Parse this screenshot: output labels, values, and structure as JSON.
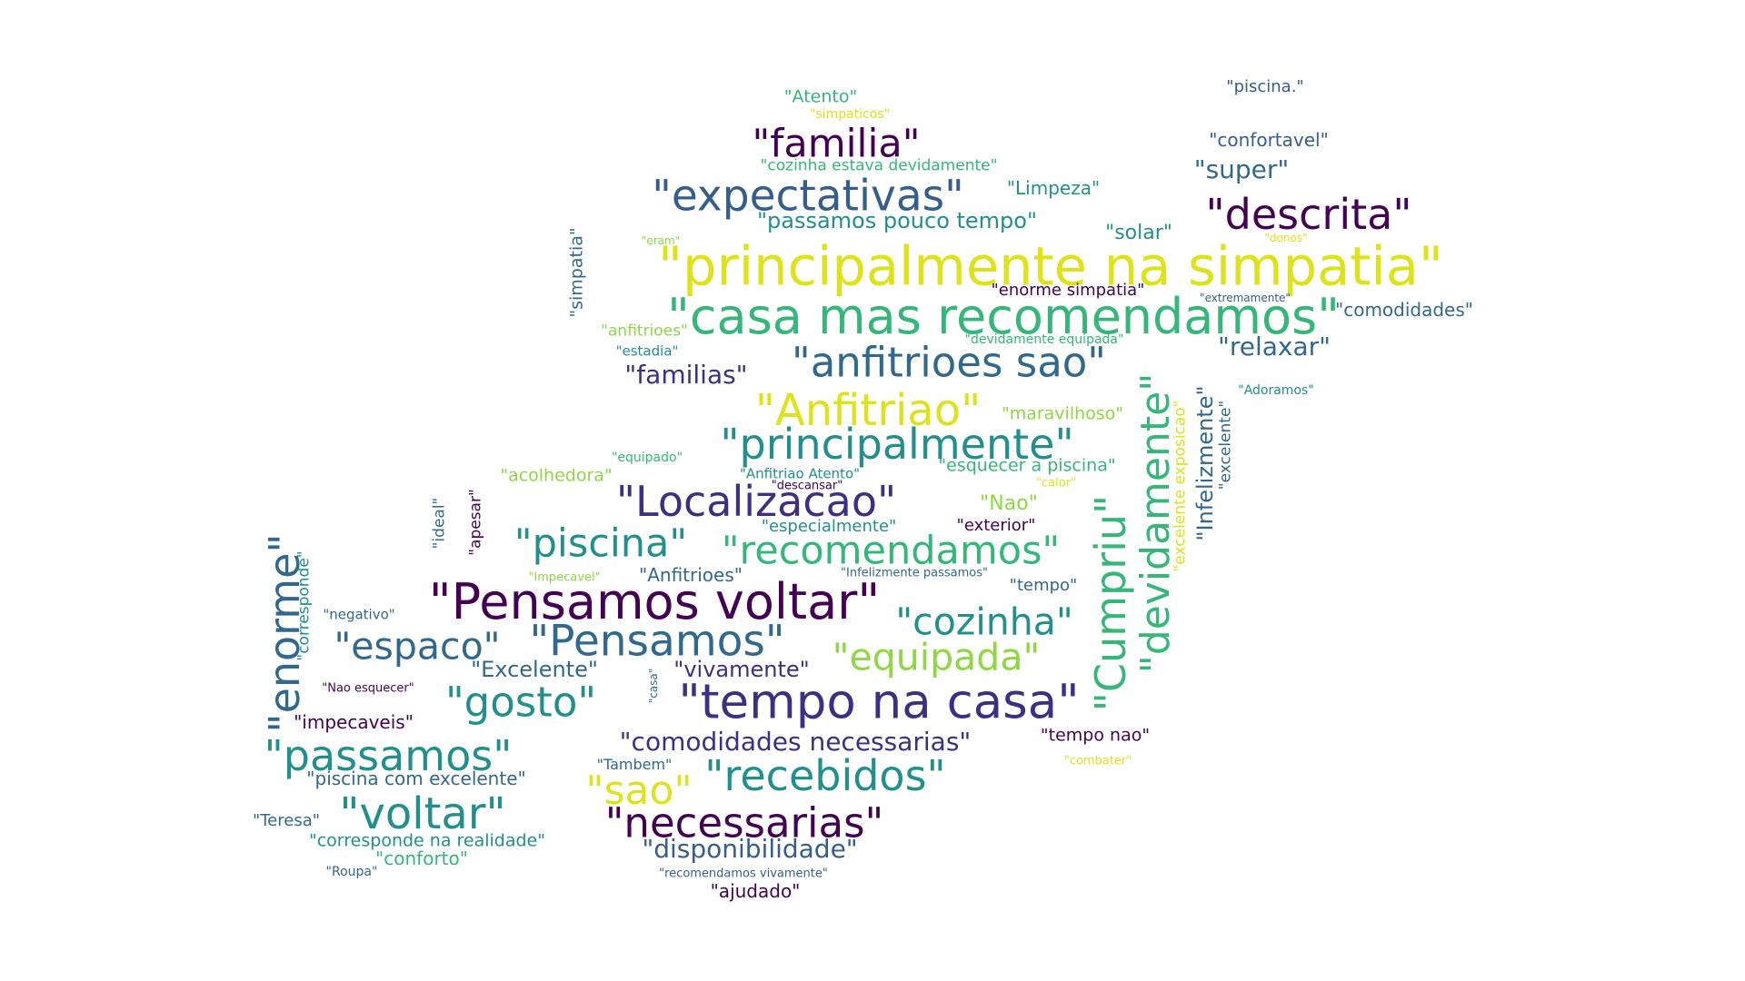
{
  "palette": {
    "dark_purple": "#440154",
    "indigo": "#3e2f84",
    "blue": "#355e8d",
    "steel": "#31688e",
    "teal": "#21908d",
    "green": "#35b779",
    "lime": "#8fd744",
    "yellow": "#dde318"
  },
  "words": [
    {
      "id": "w1",
      "text": "\"principalmente na simpatia\""
    },
    {
      "id": "w2",
      "text": "\"casa mas recomendamos\""
    },
    {
      "id": "w3",
      "text": "\"Pensamos voltar\""
    },
    {
      "id": "w4",
      "text": "\"tempo na casa\""
    },
    {
      "id": "w5",
      "text": "\"Anfitriao\""
    },
    {
      "id": "w6",
      "text": "\"principalmente\""
    },
    {
      "id": "w7",
      "text": "\"Localizacao\""
    },
    {
      "id": "w8",
      "text": "\"expectativas\""
    },
    {
      "id": "w9",
      "text": "\"anfitrioes sao\""
    },
    {
      "id": "w10",
      "text": "\"descrita\""
    },
    {
      "id": "w11",
      "text": "\"Pensamos\""
    },
    {
      "id": "w12",
      "text": "\"Cumpriu\""
    },
    {
      "id": "w13",
      "text": "\"devidamente\""
    },
    {
      "id": "w14",
      "text": "\"enorme\""
    },
    {
      "id": "w15",
      "text": "\"voltar\""
    },
    {
      "id": "w16",
      "text": "\"recebidos\""
    },
    {
      "id": "w17",
      "text": "\"necessarias\""
    },
    {
      "id": "w18",
      "text": "\"passamos\""
    },
    {
      "id": "w19",
      "text": "\"familia\""
    },
    {
      "id": "w20",
      "text": "\"recomendamos\""
    },
    {
      "id": "w21",
      "text": "\"piscina\""
    },
    {
      "id": "w22",
      "text": "\"gosto\""
    },
    {
      "id": "w23",
      "text": "\"espaco\""
    },
    {
      "id": "w24",
      "text": "\"cozinha\""
    },
    {
      "id": "w25",
      "text": "\"equipada\""
    },
    {
      "id": "w26",
      "text": "\"sao\""
    },
    {
      "id": "w27",
      "text": "\"comodidades necessarias\""
    },
    {
      "id": "w28",
      "text": "\"disponibilidade\""
    },
    {
      "id": "w29",
      "text": "\"familias\""
    },
    {
      "id": "w30",
      "text": "\"relaxar\""
    },
    {
      "id": "w31",
      "text": "\"super\""
    },
    {
      "id": "w32",
      "text": "\"passamos pouco tempo\""
    },
    {
      "id": "w33",
      "text": "\"vivamente\""
    },
    {
      "id": "w34",
      "text": "\"Excelente\""
    },
    {
      "id": "w35",
      "text": "\"Infelizmente\""
    },
    {
      "id": "w36",
      "text": "\"confortavel\""
    },
    {
      "id": "w37",
      "text": "\"comodidades\""
    },
    {
      "id": "w38",
      "text": "\"solar\""
    },
    {
      "id": "w39",
      "text": "\"Limpeza\""
    },
    {
      "id": "w40",
      "text": "\"Atento\""
    },
    {
      "id": "w41",
      "text": "\"simpatia\""
    },
    {
      "id": "w42",
      "text": "\"acolhedora\""
    },
    {
      "id": "w43",
      "text": "\"piscina com excelente\""
    },
    {
      "id": "w44",
      "text": "\"corresponde na realidade\""
    },
    {
      "id": "w45",
      "text": "\"impecaveis\""
    },
    {
      "id": "w46",
      "text": "\"conforto\""
    },
    {
      "id": "w47",
      "text": "\"Anfitrioes\""
    },
    {
      "id": "w48",
      "text": "\"tempo nao\""
    },
    {
      "id": "w49",
      "text": "\"ajudado\""
    },
    {
      "id": "w50",
      "text": "\"esquecer a piscina\""
    },
    {
      "id": "w51",
      "text": "\"maravilhoso\""
    },
    {
      "id": "w52",
      "text": "\"Nao\""
    },
    {
      "id": "w53",
      "text": "\"exterior\""
    },
    {
      "id": "w54",
      "text": "\"especialmente\""
    },
    {
      "id": "w55",
      "text": "\"tempo\""
    },
    {
      "id": "w56",
      "text": "\"Teresa\""
    },
    {
      "id": "w57",
      "text": "\"enorme simpatia\""
    },
    {
      "id": "w58",
      "text": "\"piscina.\""
    },
    {
      "id": "w59",
      "text": "\"excelente exposicao\""
    },
    {
      "id": "w60",
      "text": "\"excelente\""
    },
    {
      "id": "w61",
      "text": "\"cozinha estava devidamente\""
    },
    {
      "id": "w62",
      "text": "\"anfitrioes\""
    },
    {
      "id": "w63",
      "text": "\"apesar\""
    },
    {
      "id": "w64",
      "text": "\"ideal\""
    },
    {
      "id": "w65",
      "text": "\"corresponde\""
    },
    {
      "id": "w66",
      "text": "\"Tambem\""
    },
    {
      "id": "w67",
      "text": "\"negativo\""
    },
    {
      "id": "w68",
      "text": "\"Anfitriao Atento\""
    },
    {
      "id": "w69",
      "text": "\"Impecavel\""
    },
    {
      "id": "w70",
      "text": "\"estadia\""
    },
    {
      "id": "w71",
      "text": "\"Adoramos\""
    },
    {
      "id": "w72",
      "text": "\"devidamente equipada\""
    },
    {
      "id": "w73",
      "text": "\"equipado\""
    },
    {
      "id": "w74",
      "text": "\"Roupa\""
    },
    {
      "id": "w75",
      "text": "\"simpaticos\""
    },
    {
      "id": "w76",
      "text": "\"recomendamos vivamente\""
    },
    {
      "id": "w77",
      "text": "\"Nao esquecer\""
    },
    {
      "id": "w78",
      "text": "\"Infelizmente passamos\""
    },
    {
      "id": "w79",
      "text": "\"extremamente\""
    },
    {
      "id": "w80",
      "text": "\"descansar\""
    },
    {
      "id": "w81",
      "text": "\"calor\""
    },
    {
      "id": "w82",
      "text": "\"eram\""
    },
    {
      "id": "w83",
      "text": "\"donos\""
    },
    {
      "id": "w84",
      "text": "\"casa\""
    },
    {
      "id": "w85",
      "text": "\"combater\""
    }
  ]
}
